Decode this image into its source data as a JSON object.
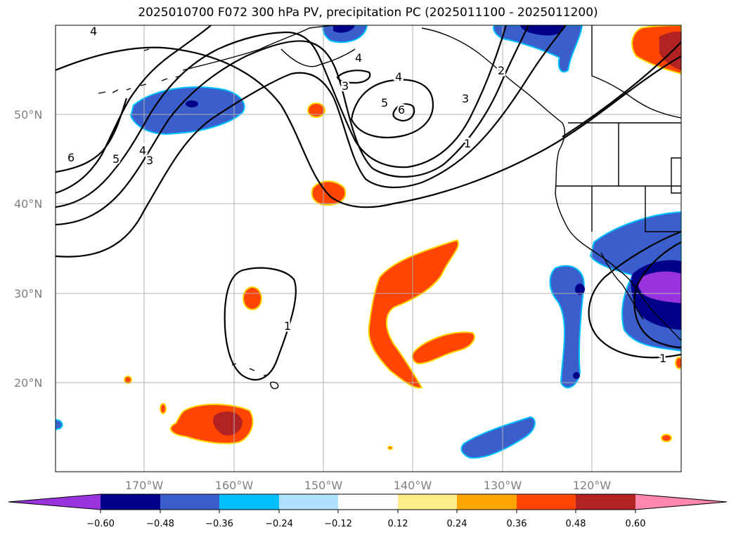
{
  "title": "2025010700 F072 300 hPa PV, precipitation PC (2025011100 - 2025011200)",
  "map": {
    "lon_ticks": [
      "170°W",
      "160°W",
      "150°W",
      "140°W",
      "130°W",
      "120°W"
    ],
    "lat_ticks": [
      "50°N",
      "40°N",
      "30°N",
      "20°N"
    ],
    "pv_contour_labels": [
      "4",
      "4",
      "4",
      "3",
      "5",
      "6",
      "3",
      "6",
      "5",
      "4",
      "3",
      "2",
      "1",
      "1",
      "1"
    ],
    "grid": true
  },
  "colorbar": {
    "ticks": [
      "−0.60",
      "−0.48",
      "−0.36",
      "−0.24",
      "−0.12",
      "0.12",
      "0.24",
      "0.36",
      "0.48",
      "0.60"
    ],
    "colors": [
      "#9933dd",
      "#00008b",
      "#3a5fcd",
      "#00bfff",
      "#b0e2ff",
      "#ffffff",
      "#ffec8b",
      "#ffa500",
      "#ff4500",
      "#b22222",
      "#ff86b0"
    ]
  }
}
